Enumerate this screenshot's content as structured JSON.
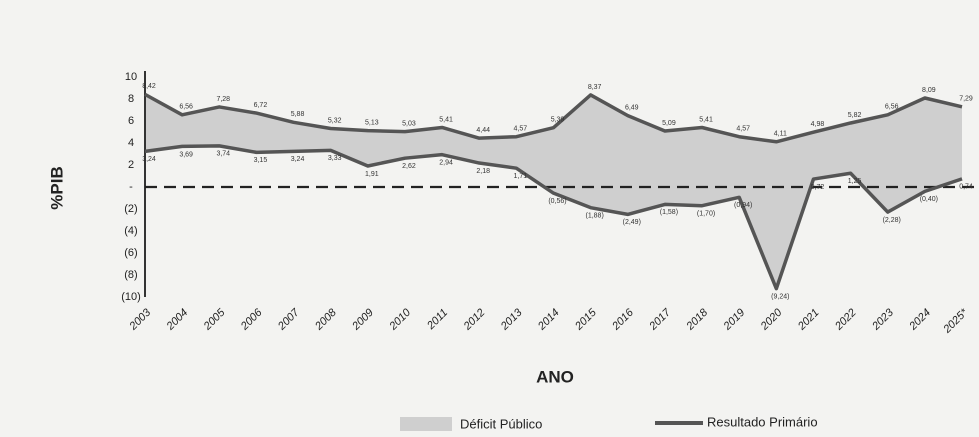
{
  "chart_data": {
    "type": "line",
    "x_label": "ANO",
    "y_label": "%PIB",
    "categories": [
      "2003",
      "2004",
      "2005",
      "2006",
      "2007",
      "2008",
      "2009",
      "2010",
      "2011",
      "2012",
      "2013",
      "2014",
      "2015",
      "2016",
      "2017",
      "2018",
      "2019",
      "2020",
      "2021",
      "2022",
      "2023",
      "2024",
      "2025*"
    ],
    "series": [
      {
        "name": "Déficit Público",
        "kind": "area",
        "color": "#cfcfcf",
        "values": [
          8.42,
          6.56,
          7.28,
          6.72,
          5.88,
          5.32,
          5.13,
          5.03,
          5.41,
          4.44,
          4.57,
          5.39,
          8.37,
          6.49,
          5.09,
          5.41,
          4.57,
          4.11,
          4.98,
          5.82,
          6.56,
          8.09,
          7.29
        ],
        "value_labels": [
          "8,42",
          "6,56",
          "7,28",
          "6,72",
          "5,88",
          "5,32",
          "5,13",
          "5,03",
          "5,41",
          "4,44",
          "4,57",
          "5,39",
          "8,37",
          "6,49",
          "5,09",
          "5,41",
          "4,57",
          "4,11",
          "4,98",
          "5,82",
          "6,56",
          "8,09",
          "7,29"
        ]
      },
      {
        "name": "Resultado Primário",
        "kind": "line",
        "color": "#555555",
        "values": [
          3.24,
          3.69,
          3.74,
          3.15,
          3.24,
          3.33,
          1.91,
          2.62,
          2.94,
          2.18,
          1.71,
          -0.56,
          -1.88,
          -2.49,
          -1.58,
          -1.7,
          -0.94,
          -9.24,
          0.72,
          1.25,
          -2.28,
          -0.4,
          0.74
        ],
        "value_labels": [
          "3,24",
          "3,69",
          "3,74",
          "3,15",
          "3,24",
          "3,33",
          "1,91",
          "2,62",
          "2,94",
          "2,18",
          "1,71",
          "(0,56)",
          "(1,88)",
          "(2,49)",
          "(1,58)",
          "(1,70)",
          "(0,94)",
          "(9,24)",
          "0,72",
          "1,25",
          "(2,28)",
          "(0,40)",
          "0,74"
        ]
      }
    ],
    "ylim": [
      -10,
      10
    ],
    "yticks": [
      10,
      8,
      6,
      4,
      2,
      {
        "value": 0,
        "label": "-"
      },
      {
        "value": -2,
        "label": "(2)"
      },
      {
        "value": -4,
        "label": "(4)"
      },
      {
        "value": -6,
        "label": "(6)"
      },
      {
        "value": -8,
        "label": "(8)"
      },
      {
        "value": -10,
        "label": "(10)"
      }
    ]
  }
}
